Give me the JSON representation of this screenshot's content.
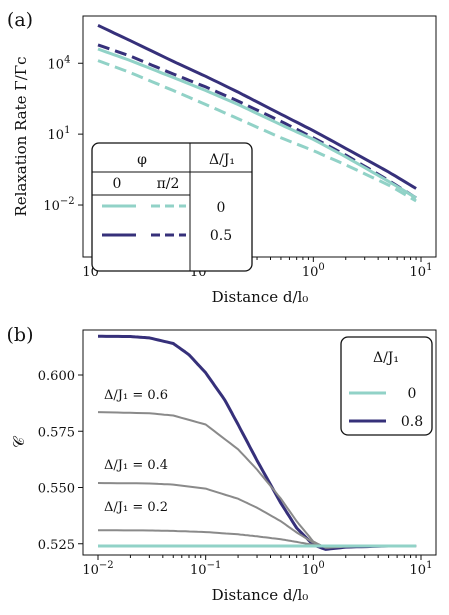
{
  "colors": {
    "teal": "#91d2c7",
    "navy": "#36307a",
    "gray": "#8a8a8a",
    "axis": "#111111"
  },
  "chart_data": [
    {
      "type": "line",
      "panel_label": "(a)",
      "xlabel": "Distance d/l₀",
      "ylabel": "Relaxation Rate Γ/Γc",
      "xscale": "log",
      "yscale": "log",
      "xlim": [
        0.01,
        10
      ],
      "ylim_log10": [
        -4.2,
        6.0
      ],
      "xticks": [
        {
          "v": 0.01,
          "base": "10",
          "exp": "−2"
        },
        {
          "v": 0.1,
          "base": "10",
          "exp": "−1"
        },
        {
          "v": 1,
          "base": "10",
          "exp": "0"
        },
        {
          "v": 10,
          "base": "10",
          "exp": "1"
        }
      ],
      "yticks": [
        {
          "v": 10000,
          "base": "10",
          "exp": "4"
        },
        {
          "v": 10,
          "base": "10",
          "exp": "1"
        },
        {
          "v": 0.01,
          "base": "10",
          "exp": "−2"
        }
      ],
      "legend": {
        "header_phi": "φ",
        "header_delta": "Δ/J₁",
        "col_labels": [
          "0",
          "π/2"
        ],
        "row_values": [
          "0",
          "0.5"
        ]
      },
      "series": [
        {
          "phi": "0",
          "delta": "0.5",
          "color": "navy",
          "style": "solid",
          "x": [
            0.01,
            0.02,
            0.05,
            0.1,
            0.2,
            0.5,
            1,
            2,
            5,
            9
          ],
          "y": [
            400000,
            90000,
            12000,
            2800,
            600,
            70,
            14,
            2.5,
            0.25,
            0.05
          ]
        },
        {
          "phi": "π/2",
          "delta": "0.5",
          "color": "navy",
          "style": "dashed",
          "x": [
            0.01,
            0.02,
            0.05,
            0.1,
            0.2,
            0.5,
            1,
            2,
            5,
            9
          ],
          "y": [
            60000,
            20000,
            3500,
            1000,
            250,
            35,
            7,
            1.3,
            0.11,
            0.02
          ]
        },
        {
          "phi": "0",
          "delta": "0",
          "color": "teal",
          "style": "solid",
          "x": [
            0.01,
            0.02,
            0.05,
            0.1,
            0.2,
            0.5,
            1,
            2,
            5,
            9
          ],
          "y": [
            40000,
            13000,
            2500,
            700,
            180,
            25,
            6,
            1.1,
            0.1,
            0.02
          ]
        },
        {
          "phi": "π/2",
          "delta": "0",
          "color": "teal",
          "style": "dashed",
          "x": [
            0.01,
            0.02,
            0.05,
            0.1,
            0.2,
            0.5,
            1,
            2,
            5,
            9
          ],
          "y": [
            13000,
            4000,
            700,
            180,
            45,
            7,
            2,
            0.5,
            0.07,
            0.015
          ]
        }
      ]
    },
    {
      "type": "line",
      "panel_label": "(b)",
      "xlabel": "Distance d/l₀",
      "ylabel": "𝒞",
      "xscale": "log",
      "xlim": [
        0.01,
        10
      ],
      "ylim": [
        0.52,
        0.62
      ],
      "xticks": [
        {
          "v": 0.01,
          "base": "10",
          "exp": "−2"
        },
        {
          "v": 0.1,
          "base": "10",
          "exp": "−1"
        },
        {
          "v": 1,
          "base": "10",
          "exp": "0"
        },
        {
          "v": 10,
          "base": "10",
          "exp": "1"
        }
      ],
      "yticks": [
        0.525,
        0.55,
        0.575,
        0.6
      ],
      "legend": {
        "title": "Δ/J₁",
        "entries": [
          {
            "label": "0",
            "color": "teal"
          },
          {
            "label": "0.8",
            "color": "navy"
          }
        ]
      },
      "annotations": [
        "Δ/J₁ = 0.6",
        "Δ/J₁ = 0.4",
        "Δ/J₁ = 0.2"
      ],
      "series": [
        {
          "name": "0.8",
          "color": "navy",
          "x": [
            0.01,
            0.02,
            0.03,
            0.05,
            0.07,
            0.1,
            0.15,
            0.2,
            0.3,
            0.5,
            0.7,
            1,
            1.3,
            2,
            5,
            9
          ],
          "y": [
            0.6172,
            0.6171,
            0.6165,
            0.614,
            0.609,
            0.601,
            0.589,
            0.578,
            0.562,
            0.543,
            0.532,
            0.5245,
            0.5225,
            0.5235,
            0.524,
            0.524
          ]
        },
        {
          "name": "Δ/J₁ = 0.6",
          "color": "gray",
          "x": [
            0.01,
            0.03,
            0.05,
            0.1,
            0.2,
            0.3,
            0.5,
            0.7,
            1,
            1.3,
            2,
            5,
            9
          ],
          "y": [
            0.5835,
            0.583,
            0.582,
            0.578,
            0.567,
            0.558,
            0.545,
            0.535,
            0.526,
            0.5232,
            0.5237,
            0.524,
            0.524
          ]
        },
        {
          "name": "Δ/J₁ = 0.4",
          "color": "gray",
          "x": [
            0.01,
            0.03,
            0.05,
            0.1,
            0.2,
            0.3,
            0.5,
            0.7,
            1,
            1.3,
            2,
            5,
            9
          ],
          "y": [
            0.552,
            0.5518,
            0.5513,
            0.5495,
            0.545,
            0.541,
            0.535,
            0.53,
            0.5255,
            0.5235,
            0.5238,
            0.524,
            0.524
          ]
        },
        {
          "name": "Δ/J₁ = 0.2",
          "color": "gray",
          "x": [
            0.01,
            0.03,
            0.05,
            0.1,
            0.2,
            0.3,
            0.5,
            0.7,
            1,
            1.3,
            2,
            5,
            9
          ],
          "y": [
            0.531,
            0.5309,
            0.5307,
            0.5302,
            0.5292,
            0.5283,
            0.527,
            0.5258,
            0.5245,
            0.5238,
            0.5239,
            0.524,
            0.524
          ]
        },
        {
          "name": "0",
          "color": "teal",
          "x": [
            0.01,
            9
          ],
          "y": [
            0.524,
            0.524
          ]
        }
      ]
    }
  ]
}
